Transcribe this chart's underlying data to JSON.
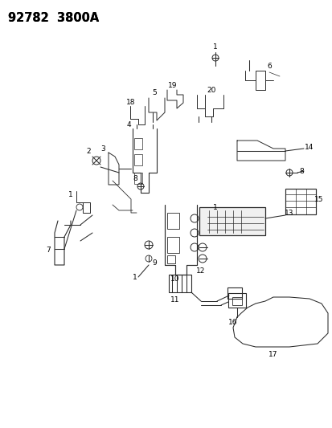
{
  "title": "92782  3800A",
  "bg_color": "#ffffff",
  "line_color": "#2a2a2a",
  "text_color": "#000000",
  "figsize": [
    4.14,
    5.33
  ],
  "dpi": 100,
  "lw": 0.75
}
